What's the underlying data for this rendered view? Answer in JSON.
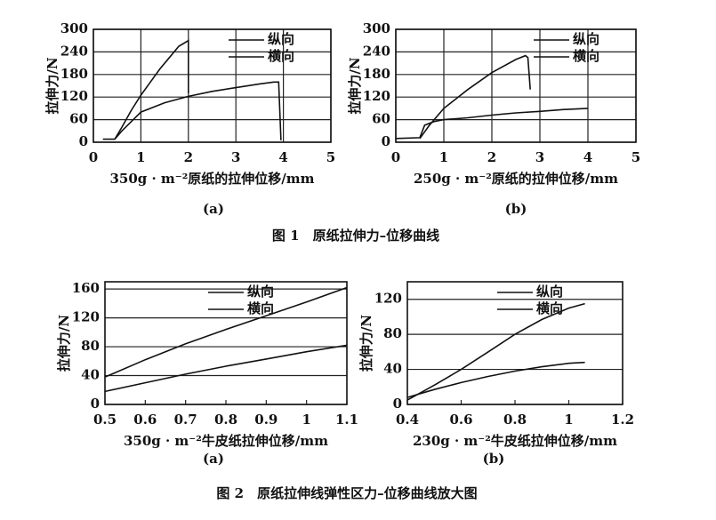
{
  "chart_data": [
    {
      "type": "line",
      "panel_label": "(a)",
      "xlabel": "350g · m⁻²原纸的拉伸位移/mm",
      "ylabel": "拉伸力/N",
      "xlim": [
        0,
        5
      ],
      "xticks": [
        0,
        1,
        2,
        3,
        4,
        5
      ],
      "ylim": [
        0,
        300
      ],
      "yticks": [
        0,
        60,
        120,
        180,
        240,
        300
      ],
      "grid": "both",
      "legend": "top-right",
      "series": [
        {
          "name": "纵向",
          "color": "#111111",
          "x": [
            0.2,
            0.45,
            0.6,
            0.8,
            1.0,
            1.2,
            1.4,
            1.6,
            1.8,
            2.0,
            2.0
          ],
          "values": [
            8,
            8,
            40,
            85,
            125,
            160,
            195,
            225,
            255,
            270,
            130
          ]
        },
        {
          "name": "横向",
          "color": "#111111",
          "x": [
            0.45,
            0.6,
            0.8,
            1.0,
            1.5,
            2.0,
            2.5,
            3.0,
            3.5,
            3.8,
            3.9,
            3.95
          ],
          "values": [
            8,
            30,
            55,
            80,
            105,
            122,
            135,
            145,
            155,
            160,
            160,
            5
          ]
        }
      ]
    },
    {
      "type": "line",
      "panel_label": "(b)",
      "xlabel": "250g · m⁻²原纸的拉伸位移/mm",
      "ylabel": "拉伸力/N",
      "xlim": [
        0,
        5
      ],
      "xticks": [
        0,
        1,
        2,
        3,
        4,
        5
      ],
      "ylim": [
        0,
        300
      ],
      "yticks": [
        0,
        60,
        120,
        180,
        240,
        300
      ],
      "grid": "both",
      "legend": "top-right",
      "series": [
        {
          "name": "纵向",
          "color": "#111111",
          "x": [
            0.5,
            0.7,
            1.0,
            1.5,
            2.0,
            2.5,
            2.7,
            2.75,
            2.8
          ],
          "values": [
            10,
            45,
            90,
            140,
            185,
            220,
            230,
            225,
            140
          ]
        },
        {
          "name": "横向",
          "color": "#111111",
          "x": [
            0,
            0.5,
            0.6,
            0.8,
            1.0,
            1.5,
            2.0,
            2.5,
            3.0,
            3.5,
            4.0
          ],
          "values": [
            10,
            12,
            45,
            55,
            60,
            65,
            72,
            78,
            82,
            87,
            90
          ]
        }
      ]
    },
    {
      "type": "line",
      "panel_label": "(a)",
      "xlabel": "350g · m⁻²牛皮纸拉伸位移/mm",
      "ylabel": "拉伸力/N",
      "xlim": [
        0.5,
        1.1
      ],
      "xticks": [
        0.5,
        0.6,
        0.7,
        0.8,
        0.9,
        1,
        1.1
      ],
      "ylim": [
        0,
        170
      ],
      "yticks": [
        0,
        40,
        80,
        120,
        160
      ],
      "grid": "y",
      "legend": "top-center",
      "series": [
        {
          "name": "纵向",
          "color": "#111111",
          "x": [
            0.5,
            0.6,
            0.7,
            0.8,
            0.9,
            1.0,
            1.1
          ],
          "values": [
            38,
            62,
            84,
            104,
            123,
            142,
            162
          ]
        },
        {
          "name": "横向",
          "color": "#111111",
          "x": [
            0.5,
            0.6,
            0.7,
            0.8,
            0.9,
            1.0,
            1.1
          ],
          "values": [
            18,
            30,
            42,
            53,
            63,
            73,
            82
          ]
        }
      ]
    },
    {
      "type": "line",
      "panel_label": "(b)",
      "xlabel": "230g · m⁻²牛皮纸拉伸位移/mm",
      "ylabel": "拉伸力/N",
      "xlim": [
        0.4,
        1.2
      ],
      "xticks": [
        0.4,
        0.6,
        0.8,
        1,
        1.2
      ],
      "ylim": [
        0,
        140
      ],
      "yticks": [
        0,
        40,
        80,
        120
      ],
      "grid": "y",
      "legend": "top-center",
      "series": [
        {
          "name": "纵向",
          "color": "#111111",
          "x": [
            0.4,
            0.5,
            0.6,
            0.7,
            0.8,
            0.9,
            1.0,
            1.06
          ],
          "values": [
            5,
            22,
            40,
            60,
            80,
            97,
            110,
            115
          ]
        },
        {
          "name": "横向",
          "color": "#111111",
          "x": [
            0.4,
            0.5,
            0.6,
            0.7,
            0.8,
            0.9,
            1.0,
            1.06
          ],
          "values": [
            8,
            17,
            25,
            32,
            38,
            43,
            47,
            48
          ]
        }
      ]
    }
  ],
  "captions": [
    "图 1　原纸拉伸力–位移曲线",
    "图 2　原纸拉伸线弹性区力–位移曲线放大图"
  ]
}
